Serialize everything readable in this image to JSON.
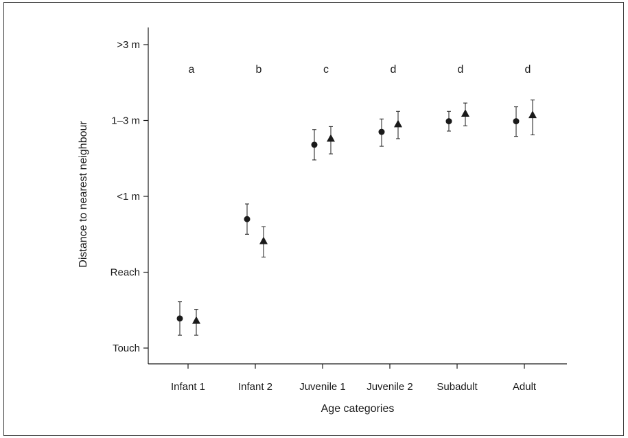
{
  "chart_data": {
    "type": "scatter",
    "title": "",
    "xlabel": "Age categories",
    "ylabel": "Distance to nearest neighbour",
    "categories": [
      "Infant 1",
      "Infant 2",
      "Juvenile 1",
      "Juvenile 2",
      "Subadult",
      "Adult"
    ],
    "y_ticks": [
      {
        "value": 1,
        "label": "Touch"
      },
      {
        "value": 2,
        "label": "Reach"
      },
      {
        "value": 3,
        "label": "<1 m"
      },
      {
        "value": 4,
        "label": "1–3 m"
      },
      {
        "value": 5,
        "label": ">3 m"
      }
    ],
    "ylim": [
      0.9,
      5.1
    ],
    "group_letters": [
      "a",
      "b",
      "c",
      "d",
      "d",
      "d"
    ],
    "series": [
      {
        "marker": "circle",
        "values": [
          1.39,
          2.7,
          3.68,
          3.85,
          3.99,
          3.99
        ],
        "err_low": [
          1.17,
          2.5,
          3.48,
          3.66,
          3.86,
          3.79
        ],
        "err_high": [
          1.61,
          2.9,
          3.88,
          4.02,
          4.12,
          4.18
        ]
      },
      {
        "marker": "triangle",
        "values": [
          1.36,
          2.41,
          3.76,
          3.95,
          4.09,
          4.07
        ],
        "err_low": [
          1.17,
          2.2,
          3.56,
          3.76,
          3.93,
          3.81
        ],
        "err_high": [
          1.51,
          2.6,
          3.92,
          4.12,
          4.23,
          4.27
        ]
      }
    ],
    "grid": false,
    "legend": "none",
    "colors": {
      "ink": "#1a1a1a"
    }
  }
}
